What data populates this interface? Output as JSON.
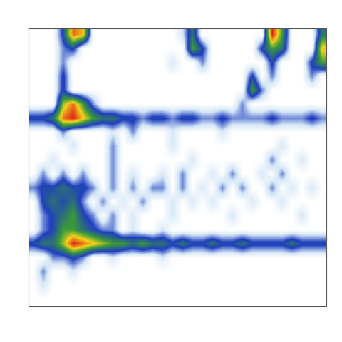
{
  "chart_data": {
    "type": "heatmap",
    "tick_labels": false,
    "cells": [
      [
        0,
        0,
        0,
        3,
        8,
        7,
        0,
        0,
        0,
        0,
        0,
        0,
        0,
        0,
        0,
        1,
        4,
        0,
        0,
        0,
        0,
        0,
        0,
        0,
        9,
        5,
        0,
        0,
        0,
        4
      ],
      [
        0,
        0,
        0,
        2,
        3,
        0,
        0,
        0,
        0,
        0,
        0,
        0,
        0,
        0,
        0,
        0,
        5,
        3,
        0,
        0,
        0,
        0,
        0,
        3,
        5,
        4,
        0,
        0,
        0,
        7
      ],
      [
        0,
        0,
        0,
        2,
        0,
        0,
        0,
        0,
        0,
        0,
        0,
        0,
        0,
        0,
        1,
        0,
        0,
        2,
        0,
        0,
        0,
        0,
        0,
        0,
        3,
        0,
        0,
        0,
        3,
        5
      ],
      [
        0,
        0,
        0,
        3,
        0,
        0,
        0,
        0,
        0,
        0,
        0,
        0,
        0,
        0,
        0,
        0,
        0,
        0,
        0,
        0,
        0,
        0,
        3,
        0,
        2,
        0,
        0,
        0,
        2,
        0
      ],
      [
        0,
        0,
        0,
        3,
        0,
        0,
        0,
        0,
        0,
        0,
        0,
        0,
        0,
        0,
        0,
        0,
        0,
        0,
        0,
        0,
        0,
        0,
        5,
        2,
        0,
        0,
        0,
        0,
        0,
        0
      ],
      [
        0,
        0,
        0,
        6,
        8,
        5,
        2,
        0,
        0,
        0,
        0,
        0,
        0,
        0,
        0,
        0,
        0,
        0,
        0,
        0,
        0,
        2,
        0,
        0,
        0,
        0,
        0,
        0,
        0,
        0
      ],
      [
        3,
        3,
        4,
        8,
        9,
        7,
        5,
        4,
        4,
        3,
        3,
        2,
        3,
        3,
        2,
        3,
        3,
        2,
        2,
        3,
        2,
        2,
        2,
        2,
        3,
        2,
        2,
        2,
        3,
        2
      ],
      [
        0,
        0,
        0,
        2,
        0,
        0,
        0,
        0,
        1,
        0,
        2,
        0,
        0,
        0,
        1,
        0,
        0,
        0,
        0,
        1,
        0,
        0,
        0,
        0,
        0,
        0,
        0,
        0,
        0,
        0
      ],
      [
        0,
        0,
        0,
        0,
        1,
        0,
        0,
        0,
        2,
        0,
        0,
        0,
        0,
        0,
        1,
        0,
        0,
        0,
        0,
        0,
        0,
        0,
        0,
        0,
        0,
        1,
        0,
        0,
        0,
        0
      ],
      [
        0,
        0,
        1,
        0,
        0,
        0,
        0,
        0,
        2,
        0,
        0,
        0,
        0,
        0,
        0,
        0,
        1,
        0,
        0,
        0,
        0,
        0,
        0,
        0,
        2,
        0,
        0,
        1,
        0,
        0
      ],
      [
        0,
        2,
        0,
        2,
        0,
        2,
        0,
        0,
        2,
        0,
        1,
        0,
        0,
        1,
        0,
        2,
        0,
        0,
        1,
        0,
        2,
        0,
        0,
        1,
        0,
        2,
        0,
        0,
        0,
        0
      ],
      [
        2,
        3,
        3,
        4,
        3,
        3,
        2,
        0,
        2,
        0,
        2,
        0,
        2,
        2,
        0,
        2,
        0,
        1,
        0,
        2,
        0,
        2,
        0,
        0,
        2,
        0,
        1,
        0,
        1,
        0
      ],
      [
        0,
        3,
        4,
        3,
        4,
        2,
        0,
        2,
        0,
        1,
        0,
        2,
        0,
        0,
        1,
        0,
        1,
        0,
        1,
        0,
        0,
        0,
        1,
        0,
        0,
        1,
        0,
        0,
        0,
        0
      ],
      [
        0,
        2,
        3,
        4,
        5,
        3,
        2,
        0,
        2,
        0,
        1,
        0,
        0,
        0,
        1,
        0,
        0,
        0,
        0,
        0,
        1,
        0,
        0,
        0,
        0,
        0,
        0,
        1,
        0,
        0
      ],
      [
        0,
        2,
        3,
        5,
        5,
        4,
        3,
        2,
        2,
        0,
        1,
        0,
        0,
        1,
        0,
        0,
        0,
        0,
        0,
        0,
        0,
        0,
        0,
        0,
        0,
        0,
        0,
        0,
        0,
        0
      ],
      [
        3,
        4,
        4,
        6,
        9,
        8,
        7,
        6,
        5,
        5,
        4,
        5,
        4,
        4,
        3,
        4,
        3,
        3,
        4,
        3,
        3,
        4,
        3,
        3,
        3,
        3,
        4,
        3,
        3,
        3
      ],
      [
        0,
        0,
        2,
        2,
        3,
        2,
        0,
        0,
        1,
        0,
        0,
        0,
        0,
        1,
        0,
        0,
        0,
        0,
        0,
        0,
        0,
        0,
        0,
        0,
        0,
        0,
        0,
        0,
        0,
        0
      ],
      [
        0,
        2,
        0,
        0,
        1,
        0,
        0,
        0,
        0,
        0,
        0,
        0,
        0,
        0,
        0,
        0,
        0,
        0,
        0,
        0,
        0,
        0,
        0,
        0,
        0,
        0,
        0,
        0,
        0,
        0
      ],
      [
        0,
        1,
        0,
        0,
        0,
        0,
        0,
        0,
        0,
        0,
        0,
        0,
        0,
        0,
        0,
        0,
        0,
        0,
        0,
        0,
        0,
        0,
        0,
        0,
        0,
        0,
        0,
        0,
        0,
        0
      ],
      [
        0,
        0,
        0,
        0,
        0,
        0,
        0,
        0,
        0,
        0,
        0,
        0,
        0,
        0,
        0,
        0,
        0,
        0,
        0,
        0,
        0,
        0,
        0,
        0,
        0,
        0,
        0,
        0,
        0,
        0
      ]
    ]
  }
}
